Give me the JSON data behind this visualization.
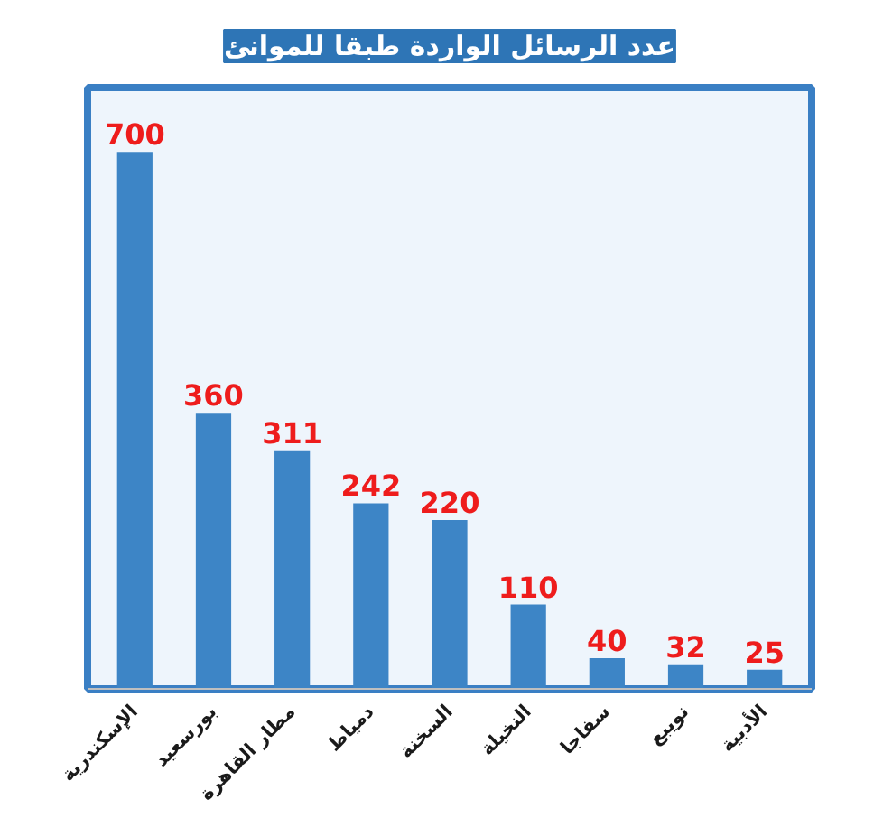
{
  "chart_data": {
    "type": "bar",
    "title": "عدد الرسائل الواردة طبقا للموانئ",
    "categories": [
      "الإسكندرية",
      "بورسعيد",
      "مطار القاهرة",
      "دمياط",
      "السخنة",
      "النخيلة",
      "سفاجا",
      "نويبع",
      "الأدبية"
    ],
    "values": [
      700,
      360,
      311,
      242,
      220,
      110,
      40,
      32,
      25
    ],
    "color": "#3d85c6",
    "data_labels": true,
    "tick_labels": "x"
  }
}
